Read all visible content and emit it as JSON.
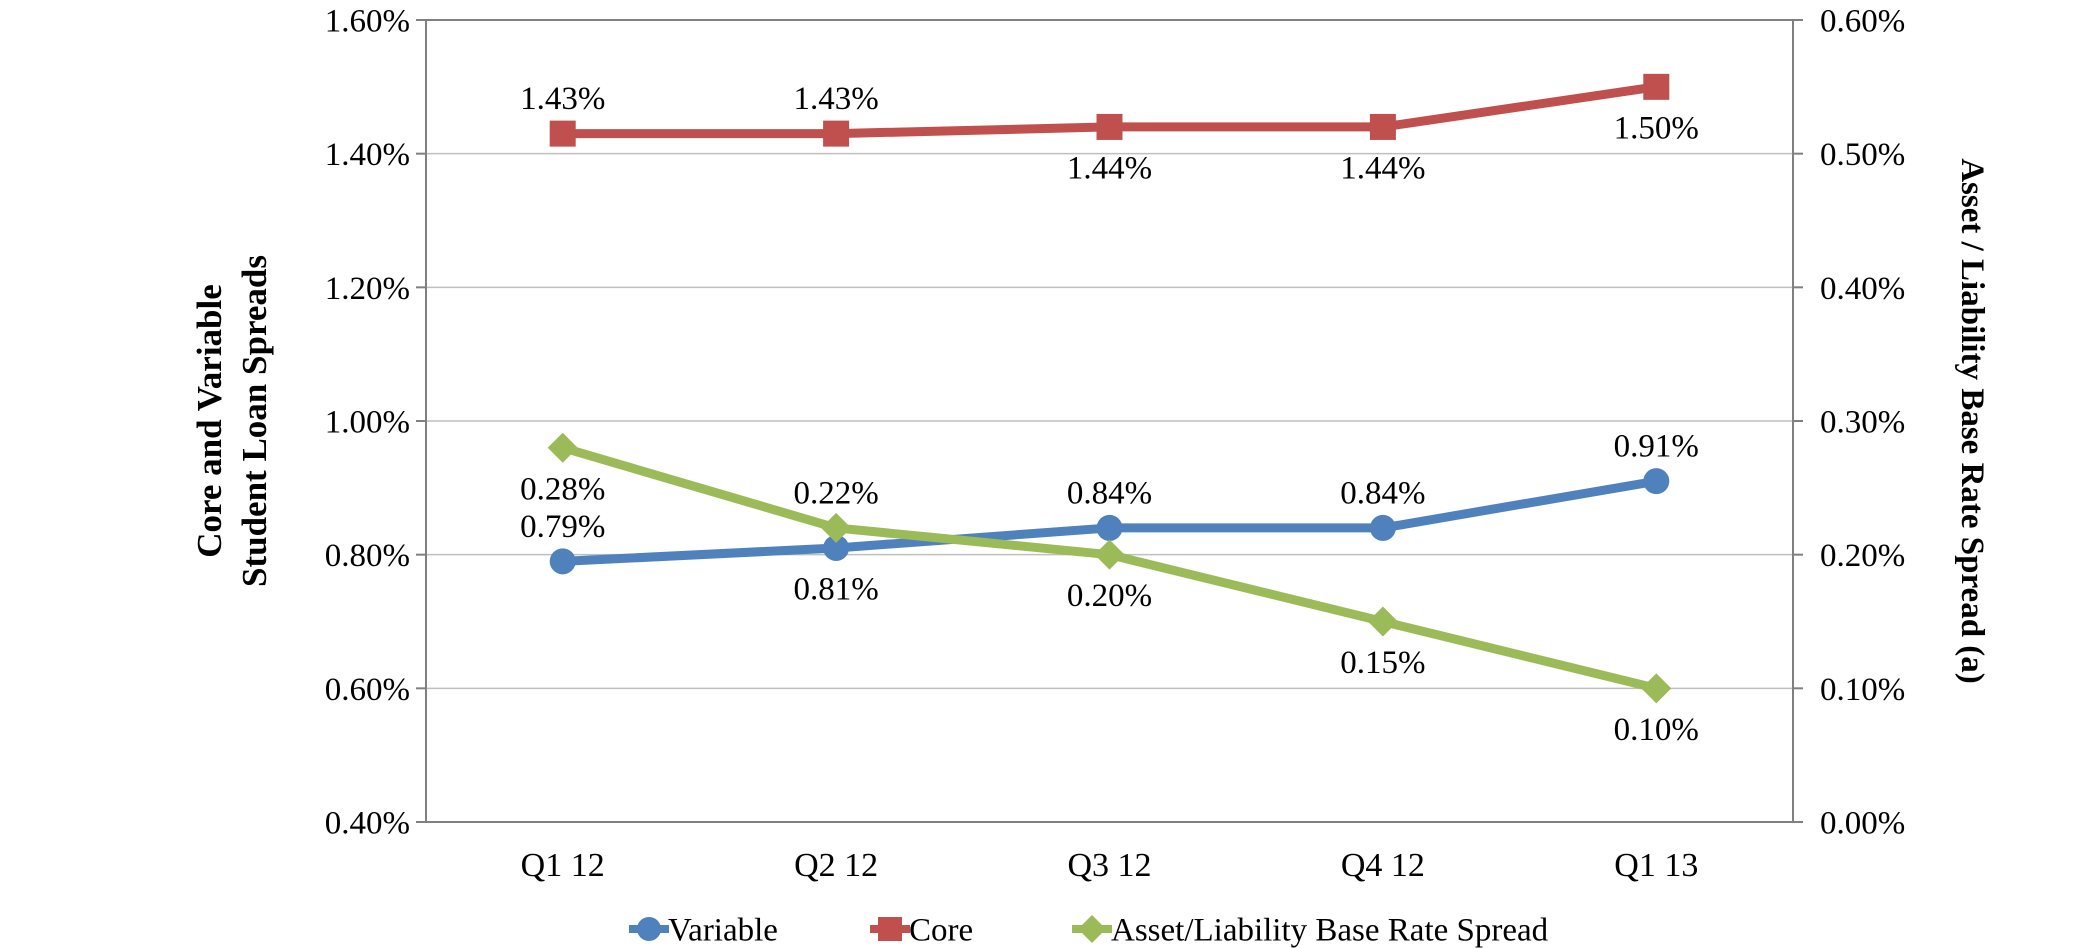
{
  "figure": {
    "background": "#FFFFFF"
  },
  "chart_data": {
    "type": "line",
    "categories": [
      "Q1 12",
      "Q2 12",
      "Q3 12",
      "Q4 12",
      "Q1 13"
    ],
    "left_axis": {
      "title_lines": [
        "Core and Variable",
        "Student Loan Spreads"
      ],
      "min": 0.4,
      "max": 1.6,
      "ticks": [
        {
          "value": 1.6,
          "label": "1.60%"
        },
        {
          "value": 1.4,
          "label": "1.40%"
        },
        {
          "value": 1.2,
          "label": "1.20%"
        },
        {
          "value": 1.0,
          "label": "1.00%"
        },
        {
          "value": 0.8,
          "label": "0.80%"
        },
        {
          "value": 0.6,
          "label": "0.60%"
        },
        {
          "value": 0.4,
          "label": "0.40%"
        }
      ]
    },
    "right_axis": {
      "title": "Asset / Liability Base Rate Spread (a)",
      "min": 0.0,
      "max": 0.6,
      "ticks": [
        {
          "value": 0.6,
          "label": "0.60%"
        },
        {
          "value": 0.5,
          "label": "0.50%"
        },
        {
          "value": 0.4,
          "label": "0.40%"
        },
        {
          "value": 0.3,
          "label": "0.30%"
        },
        {
          "value": 0.2,
          "label": "0.20%"
        },
        {
          "value": 0.1,
          "label": "0.10%"
        },
        {
          "value": 0.0,
          "label": "0.00%"
        }
      ]
    },
    "series": [
      {
        "name": "Variable",
        "slug": "variable",
        "color": "#4F81BD",
        "marker": "circle",
        "axis": "left",
        "values": [
          0.79,
          0.81,
          0.84,
          0.84,
          0.91
        ],
        "labels": [
          "0.79%",
          "0.81%",
          "0.84%",
          "0.84%",
          "0.91%"
        ],
        "label_positions": [
          "above",
          "below",
          "above",
          "above",
          "above"
        ]
      },
      {
        "name": "Core",
        "slug": "core",
        "color": "#C0504D",
        "marker": "square",
        "axis": "left",
        "values": [
          1.43,
          1.43,
          1.44,
          1.44,
          1.5
        ],
        "labels": [
          "1.43%",
          "1.43%",
          "1.44%",
          "1.44%",
          "1.50%"
        ],
        "label_positions": [
          "above",
          "above",
          "below",
          "below",
          "below"
        ]
      },
      {
        "name": "Asset/Liability Base Rate Spread",
        "slug": "asset-liability-base-rate-spread",
        "color": "#9BBB59",
        "marker": "diamond",
        "axis": "right",
        "values": [
          0.28,
          0.22,
          0.2,
          0.15,
          0.1
        ],
        "labels": [
          "0.28%",
          "0.22%",
          "0.20%",
          "0.15%",
          "0.10%"
        ],
        "label_positions": [
          "below",
          "above",
          "below",
          "below",
          "below"
        ]
      }
    ],
    "legend": {
      "position": "bottom",
      "entries": [
        "Variable",
        "Core",
        "Asset/Liability Base Rate Spread"
      ]
    },
    "grid": true,
    "colors": {
      "gridline": "#BFBFBF",
      "axis_border": "#808080",
      "text": "#000000"
    }
  }
}
